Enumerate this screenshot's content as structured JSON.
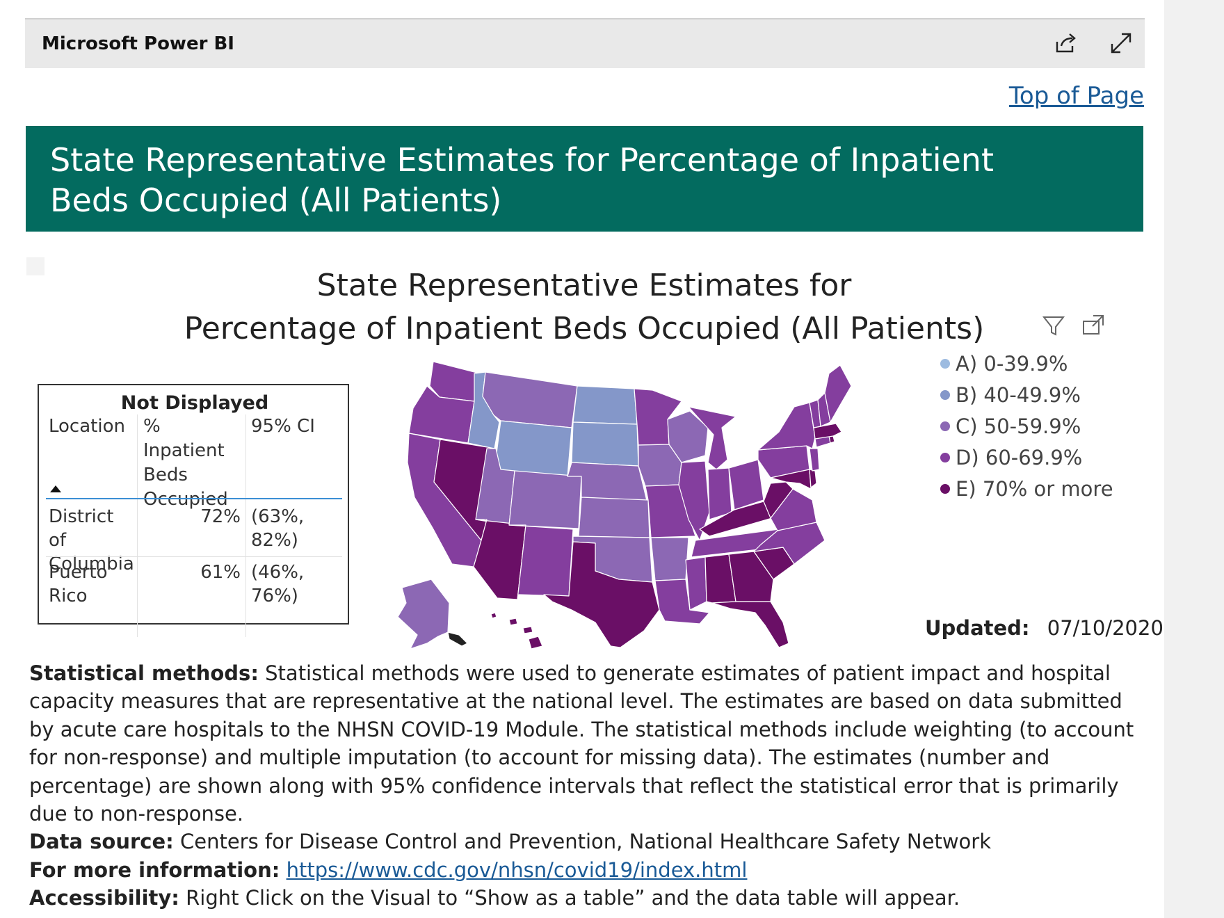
{
  "powerbi": {
    "app_title": "Microsoft Power BI",
    "share_icon": "share-icon",
    "expand_icon": "expand-icon"
  },
  "top_link": "Top of Page",
  "banner_title": "State Representative Estimates for Percentage of Inpatient Beds Occupied (All Patients)",
  "visual": {
    "title_line1": "State Representative Estimates for",
    "title_line2": "Percentage of Inpatient Beds Occupied (All Patients)",
    "filter_icon": "filter-icon",
    "focus_icon": "focus-mode-icon"
  },
  "table": {
    "title": "Not Displayed",
    "columns": [
      "Location",
      "% Inpatient Beds Occupied",
      "95% CI"
    ],
    "rows": [
      {
        "location": "District of Columbia",
        "pct": "72%",
        "ci": "(63%, 82%)"
      },
      {
        "location": "Puerto Rico",
        "pct": "61%",
        "ci": "(46%, 76%)"
      }
    ]
  },
  "legend": [
    {
      "label": "A) 0-39.9%",
      "color": "#9dbbe0"
    },
    {
      "label": "B) 40-49.9%",
      "color": "#8497c9"
    },
    {
      "label": "C) 50-59.9%",
      "color": "#8c68b4"
    },
    {
      "label": "D) 60-69.9%",
      "color": "#843e9e"
    },
    {
      "label": "E) 70% or more",
      "color": "#6a0f66"
    }
  ],
  "updated": {
    "label": "Updated:",
    "date": "07/10/2020"
  },
  "notes": {
    "methods_label": "Statistical methods:",
    "methods_text": " Statistical methods were used to generate estimates of patient impact and hospital capacity measures that are representative at the national level. The estimates are based on data submitted by acute care hospitals to the NHSN COVID-19 Module. The statistical methods include weighting (to account for non-response) and multiple imputation (to account for missing data). The estimates (number and percentage) are shown along with 95% confidence intervals that reflect the statistical error that is primarily due to non-response.",
    "source_label": "Data source:",
    "source_text": " Centers for Disease Control and Prevention, National Healthcare Safety Network",
    "more_label": "For more information:",
    "more_link": "https://www.cdc.gov/nhsn/covid19/index.html",
    "access_label": "Accessibility:",
    "access_text": " Right Click on the Visual to “Show as a table” and the data table will appear."
  }
}
